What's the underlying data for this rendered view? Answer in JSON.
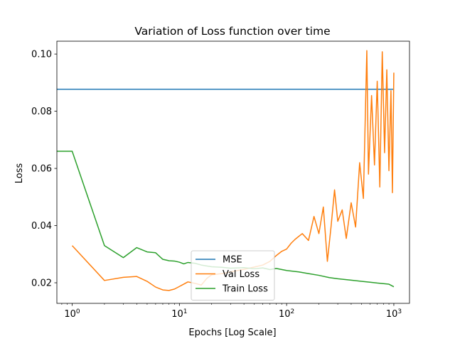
{
  "chart_data": {
    "type": "line",
    "title": "Variation of Loss function over time",
    "xlabel": "Epochs [Log Scale]",
    "ylabel": "Loss",
    "xscale": "log",
    "xlim": [
      0.72,
      1400
    ],
    "ylim": [
      0.0128,
      0.1045
    ],
    "x_ticks": [
      {
        "value": 1,
        "base": "10",
        "exp": "0"
      },
      {
        "value": 10,
        "base": "10",
        "exp": "1"
      },
      {
        "value": 100,
        "base": "10",
        "exp": "2"
      },
      {
        "value": 1000,
        "base": "10",
        "exp": "3"
      }
    ],
    "y_ticks": [
      {
        "value": 0.02,
        "label": "0.02"
      },
      {
        "value": 0.04,
        "label": "0.04"
      },
      {
        "value": 0.06,
        "label": "0.06"
      },
      {
        "value": 0.08,
        "label": "0.08"
      },
      {
        "value": 0.1,
        "label": "0.10"
      }
    ],
    "grid": false,
    "legend_position": "lower-center",
    "series": [
      {
        "name": "MSE",
        "color": "#1f77b4",
        "points": [
          [
            0.72,
            0.0877
          ],
          [
            1000,
            0.0877
          ]
        ]
      },
      {
        "name": "Val Loss",
        "color": "#ff7f0e",
        "points": [
          [
            1,
            0.033
          ],
          [
            2,
            0.0208
          ],
          [
            3,
            0.0219
          ],
          [
            4,
            0.0222
          ],
          [
            5,
            0.0205
          ],
          [
            6,
            0.0185
          ],
          [
            7,
            0.0175
          ],
          [
            8,
            0.0173
          ],
          [
            9,
            0.0178
          ],
          [
            10,
            0.0187
          ],
          [
            12,
            0.0203
          ],
          [
            14,
            0.0198
          ],
          [
            16,
            0.0192
          ],
          [
            18,
            0.0215
          ],
          [
            20,
            0.0228
          ],
          [
            25,
            0.0232
          ],
          [
            30,
            0.0238
          ],
          [
            35,
            0.0243
          ],
          [
            40,
            0.0247
          ],
          [
            50,
            0.0255
          ],
          [
            60,
            0.0262
          ],
          [
            70,
            0.0275
          ],
          [
            80,
            0.0295
          ],
          [
            90,
            0.031
          ],
          [
            100,
            0.0318
          ],
          [
            110,
            0.0338
          ],
          [
            120,
            0.0352
          ],
          [
            140,
            0.0372
          ],
          [
            160,
            0.0348
          ],
          [
            180,
            0.0432
          ],
          [
            200,
            0.0372
          ],
          [
            220,
            0.0465
          ],
          [
            240,
            0.0275
          ],
          [
            260,
            0.0398
          ],
          [
            280,
            0.0525
          ],
          [
            300,
            0.0415
          ],
          [
            330,
            0.0455
          ],
          [
            360,
            0.0355
          ],
          [
            400,
            0.048
          ],
          [
            440,
            0.0395
          ],
          [
            480,
            0.062
          ],
          [
            520,
            0.0495
          ],
          [
            560,
            0.1012
          ],
          [
            580,
            0.058
          ],
          [
            620,
            0.0855
          ],
          [
            660,
            0.0612
          ],
          [
            700,
            0.0905
          ],
          [
            740,
            0.0535
          ],
          [
            780,
            0.1008
          ],
          [
            820,
            0.0655
          ],
          [
            860,
            0.0945
          ],
          [
            900,
            0.0592
          ],
          [
            940,
            0.0872
          ],
          [
            970,
            0.0515
          ],
          [
            1000,
            0.0935
          ]
        ]
      },
      {
        "name": "Train Loss",
        "color": "#2ca02c",
        "points": [
          [
            0.72,
            0.066
          ],
          [
            1,
            0.066
          ],
          [
            2,
            0.033
          ],
          [
            3,
            0.0288
          ],
          [
            4,
            0.0323
          ],
          [
            5,
            0.0308
          ],
          [
            6,
            0.0305
          ],
          [
            7,
            0.0282
          ],
          [
            8,
            0.0277
          ],
          [
            9,
            0.0276
          ],
          [
            10,
            0.0272
          ],
          [
            11,
            0.0266
          ],
          [
            12,
            0.0271
          ],
          [
            14,
            0.0268
          ],
          [
            16,
            0.0262
          ],
          [
            20,
            0.0256
          ],
          [
            25,
            0.0254
          ],
          [
            30,
            0.0251
          ],
          [
            40,
            0.0253
          ],
          [
            50,
            0.0249
          ],
          [
            60,
            0.0252
          ],
          [
            70,
            0.0246
          ],
          [
            80,
            0.025
          ],
          [
            100,
            0.0243
          ],
          [
            130,
            0.0238
          ],
          [
            160,
            0.0232
          ],
          [
            200,
            0.0226
          ],
          [
            250,
            0.0218
          ],
          [
            300,
            0.0214
          ],
          [
            400,
            0.0209
          ],
          [
            500,
            0.0205
          ],
          [
            600,
            0.0202
          ],
          [
            700,
            0.0199
          ],
          [
            800,
            0.0197
          ],
          [
            900,
            0.0195
          ],
          [
            1000,
            0.0186
          ]
        ]
      }
    ]
  }
}
